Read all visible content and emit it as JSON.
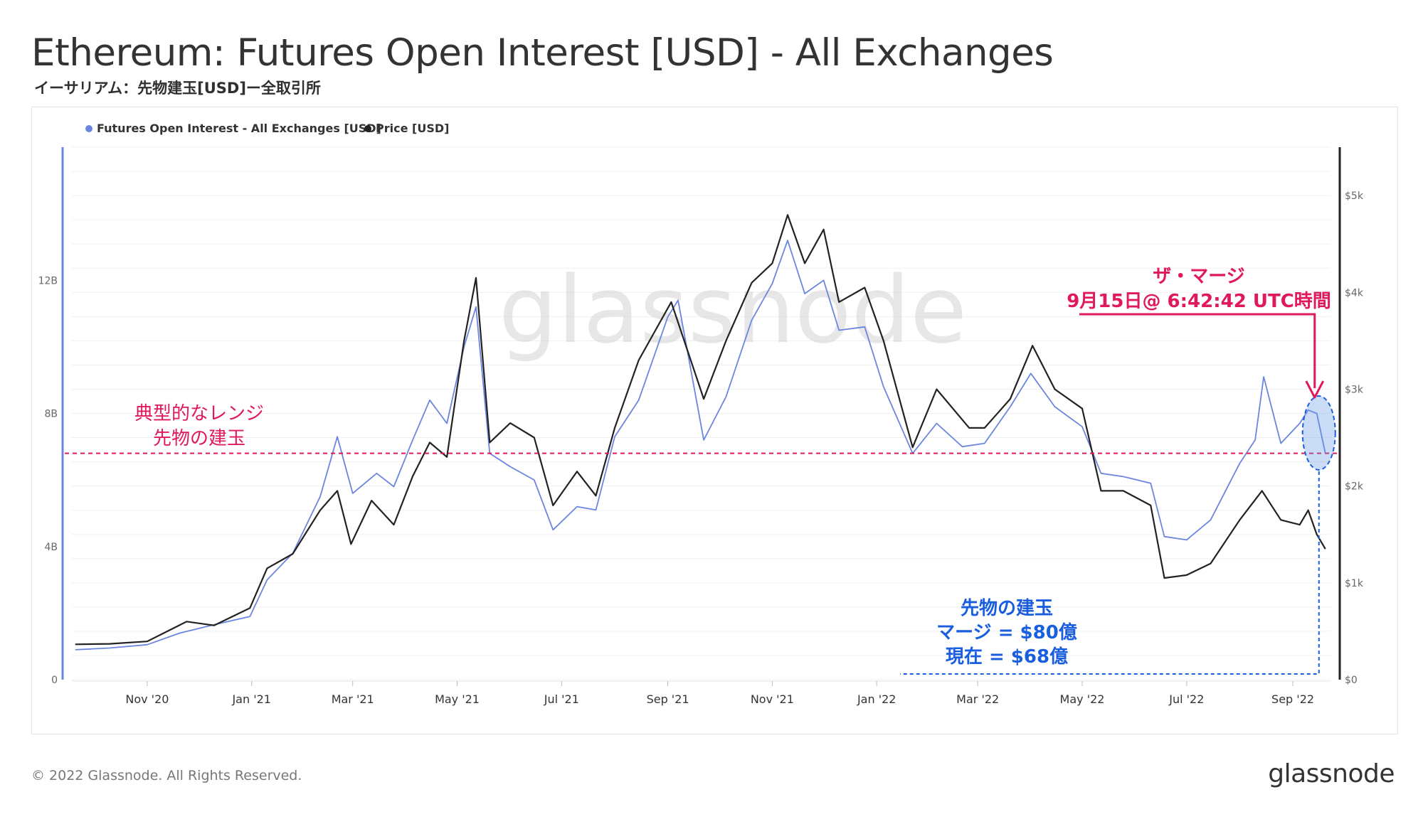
{
  "header": {
    "title": "Ethereum: Futures Open Interest [USD] - All Exchanges",
    "subtitle": "イーサリアム：先物建玉[USD]ー全取引所"
  },
  "footer": {
    "copyright": "© 2022 Glassnode. All Rights Reserved.",
    "logo": "glassnode"
  },
  "watermark": "glassnode",
  "chart_data": {
    "type": "line",
    "xlim": [
      "2020-09-18",
      "2022-09-23"
    ],
    "x_ticks": [
      {
        "date": "2020-11-01",
        "label": "Nov '20"
      },
      {
        "date": "2021-01-01",
        "label": "Jan '21"
      },
      {
        "date": "2021-03-01",
        "label": "Mar '21"
      },
      {
        "date": "2021-05-01",
        "label": "May '21"
      },
      {
        "date": "2021-07-01",
        "label": "Jul '21"
      },
      {
        "date": "2021-09-01",
        "label": "Sep '21"
      },
      {
        "date": "2021-11-01",
        "label": "Nov '21"
      },
      {
        "date": "2022-01-01",
        "label": "Jan '22"
      },
      {
        "date": "2022-03-01",
        "label": "Mar '22"
      },
      {
        "date": "2022-05-01",
        "label": "May '22"
      },
      {
        "date": "2022-07-01",
        "label": "Jul '22"
      },
      {
        "date": "2022-09-01",
        "label": "Sep '22"
      }
    ],
    "y_left": {
      "ylim": [
        0,
        16000000000
      ],
      "ticks": [
        {
          "value": 0,
          "label": "0"
        },
        {
          "value": 4000000000,
          "label": "4B"
        },
        {
          "value": 8000000000,
          "label": "8B"
        },
        {
          "value": 12000000000,
          "label": "12B"
        }
      ]
    },
    "y_right": {
      "ylim": [
        0,
        5500
      ],
      "ticks": [
        {
          "value": 0,
          "label": "$0"
        },
        {
          "value": 1000,
          "label": "$1k"
        },
        {
          "value": 2000,
          "label": "$2k"
        },
        {
          "value": 3000,
          "label": "$3k"
        },
        {
          "value": 4000,
          "label": "$4k"
        },
        {
          "value": 5000,
          "label": "$5k"
        }
      ]
    },
    "legend": {
      "placement": "top-left",
      "entries": [
        "Futures Open Interest - All Exchanges [USD]",
        "Price [USD]"
      ]
    },
    "series": [
      {
        "name": "Futures Open Interest - All Exchanges [USD]",
        "axis": "left",
        "color": "#6b86e0",
        "points": [
          [
            "2020-09-20",
            900000000
          ],
          [
            "2020-10-10",
            950000000
          ],
          [
            "2020-11-01",
            1050000000
          ],
          [
            "2020-11-20",
            1400000000
          ],
          [
            "2020-12-10",
            1650000000
          ],
          [
            "2020-12-31",
            1900000000
          ],
          [
            "2021-01-10",
            3000000000
          ],
          [
            "2021-01-25",
            3800000000
          ],
          [
            "2021-02-10",
            5500000000
          ],
          [
            "2021-02-20",
            7300000000
          ],
          [
            "2021-03-01",
            5600000000
          ],
          [
            "2021-03-15",
            6200000000
          ],
          [
            "2021-03-25",
            5800000000
          ],
          [
            "2021-04-05",
            7200000000
          ],
          [
            "2021-04-15",
            8400000000
          ],
          [
            "2021-04-25",
            7700000000
          ],
          [
            "2021-05-05",
            10000000000
          ],
          [
            "2021-05-12",
            11200000000
          ],
          [
            "2021-05-20",
            6800000000
          ],
          [
            "2021-06-01",
            6400000000
          ],
          [
            "2021-06-15",
            6000000000
          ],
          [
            "2021-06-26",
            4500000000
          ],
          [
            "2021-07-10",
            5200000000
          ],
          [
            "2021-07-21",
            5100000000
          ],
          [
            "2021-08-01",
            7300000000
          ],
          [
            "2021-08-15",
            8400000000
          ],
          [
            "2021-09-01",
            10900000000
          ],
          [
            "2021-09-07",
            11400000000
          ],
          [
            "2021-09-22",
            7200000000
          ],
          [
            "2021-10-05",
            8500000000
          ],
          [
            "2021-10-20",
            10800000000
          ],
          [
            "2021-11-01",
            11900000000
          ],
          [
            "2021-11-10",
            13200000000
          ],
          [
            "2021-11-20",
            11600000000
          ],
          [
            "2021-12-01",
            12000000000
          ],
          [
            "2021-12-10",
            10500000000
          ],
          [
            "2021-12-25",
            10600000000
          ],
          [
            "2022-01-05",
            8800000000
          ],
          [
            "2022-01-22",
            6800000000
          ],
          [
            "2022-02-05",
            7700000000
          ],
          [
            "2022-02-20",
            7000000000
          ],
          [
            "2022-03-05",
            7100000000
          ],
          [
            "2022-03-20",
            8200000000
          ],
          [
            "2022-04-01",
            9200000000
          ],
          [
            "2022-04-15",
            8200000000
          ],
          [
            "2022-05-01",
            7600000000
          ],
          [
            "2022-05-12",
            6200000000
          ],
          [
            "2022-05-25",
            6100000000
          ],
          [
            "2022-06-10",
            5900000000
          ],
          [
            "2022-06-18",
            4300000000
          ],
          [
            "2022-07-01",
            4200000000
          ],
          [
            "2022-07-15",
            4800000000
          ],
          [
            "2022-08-01",
            6500000000
          ],
          [
            "2022-08-10",
            7200000000
          ],
          [
            "2022-08-15",
            9100000000
          ],
          [
            "2022-08-25",
            7100000000
          ],
          [
            "2022-09-05",
            7700000000
          ],
          [
            "2022-09-10",
            8100000000
          ],
          [
            "2022-09-15",
            8000000000
          ],
          [
            "2022-09-20",
            6800000000
          ]
        ]
      },
      {
        "name": "Price [USD]",
        "axis": "right",
        "color": "#222222",
        "points": [
          [
            "2020-09-20",
            365
          ],
          [
            "2020-10-10",
            370
          ],
          [
            "2020-11-01",
            395
          ],
          [
            "2020-11-24",
            600
          ],
          [
            "2020-12-10",
            560
          ],
          [
            "2020-12-31",
            740
          ],
          [
            "2021-01-10",
            1150
          ],
          [
            "2021-01-25",
            1300
          ],
          [
            "2021-02-10",
            1750
          ],
          [
            "2021-02-20",
            1950
          ],
          [
            "2021-02-28",
            1400
          ],
          [
            "2021-03-12",
            1850
          ],
          [
            "2021-03-25",
            1600
          ],
          [
            "2021-04-05",
            2100
          ],
          [
            "2021-04-15",
            2450
          ],
          [
            "2021-04-25",
            2300
          ],
          [
            "2021-05-05",
            3500
          ],
          [
            "2021-05-12",
            4150
          ],
          [
            "2021-05-20",
            2450
          ],
          [
            "2021-06-01",
            2650
          ],
          [
            "2021-06-15",
            2500
          ],
          [
            "2021-06-26",
            1800
          ],
          [
            "2021-07-10",
            2150
          ],
          [
            "2021-07-21",
            1900
          ],
          [
            "2021-08-01",
            2600
          ],
          [
            "2021-08-15",
            3300
          ],
          [
            "2021-09-03",
            3900
          ],
          [
            "2021-09-22",
            2900
          ],
          [
            "2021-10-05",
            3500
          ],
          [
            "2021-10-20",
            4100
          ],
          [
            "2021-11-01",
            4300
          ],
          [
            "2021-11-10",
            4800
          ],
          [
            "2021-11-20",
            4300
          ],
          [
            "2021-12-01",
            4650
          ],
          [
            "2021-12-10",
            3900
          ],
          [
            "2021-12-25",
            4050
          ],
          [
            "2022-01-05",
            3500
          ],
          [
            "2022-01-22",
            2400
          ],
          [
            "2022-02-05",
            3000
          ],
          [
            "2022-02-24",
            2600
          ],
          [
            "2022-03-05",
            2600
          ],
          [
            "2022-03-20",
            2900
          ],
          [
            "2022-04-02",
            3450
          ],
          [
            "2022-04-15",
            3000
          ],
          [
            "2022-05-01",
            2800
          ],
          [
            "2022-05-12",
            1950
          ],
          [
            "2022-05-25",
            1950
          ],
          [
            "2022-06-10",
            1800
          ],
          [
            "2022-06-18",
            1050
          ],
          [
            "2022-07-01",
            1080
          ],
          [
            "2022-07-15",
            1200
          ],
          [
            "2022-08-01",
            1650
          ],
          [
            "2022-08-14",
            1950
          ],
          [
            "2022-08-25",
            1650
          ],
          [
            "2022-09-05",
            1600
          ],
          [
            "2022-09-10",
            1750
          ],
          [
            "2022-09-15",
            1500
          ],
          [
            "2022-09-20",
            1350
          ]
        ]
      }
    ],
    "annotations": {
      "typical_range": {
        "label_lines": [
          "典型的なレンジ",
          "先物の建玉"
        ],
        "value": 6800000000,
        "color": "#e0195a"
      },
      "merge": {
        "label_lines": [
          "ザ・マージ",
          "9月15日@ 6:42:42 UTC時間"
        ],
        "date": "2022-09-15",
        "color": "#e0195a"
      },
      "open_interest_note": {
        "label_lines": [
          "先物の建玉",
          "マージ = $80億",
          "現在 = $68億"
        ],
        "color": "#1a5ee0"
      }
    }
  }
}
